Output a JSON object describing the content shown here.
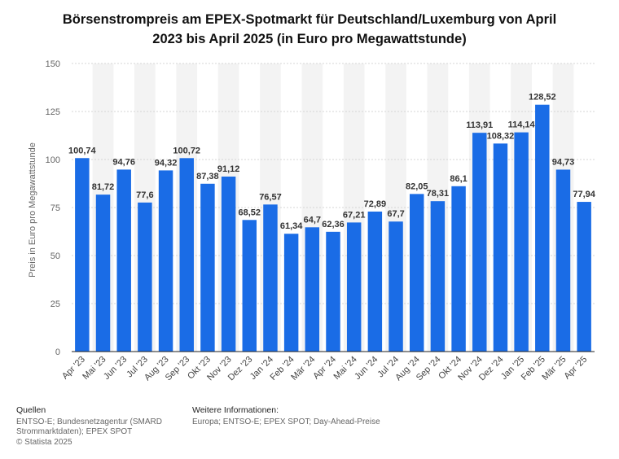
{
  "title": {
    "line1": "Börsenstrompreis am EPEX-Spotmarkt für Deutschland/Luxemburg von April",
    "line2": "2023 bis April 2025 (in Euro pro Megawattstunde)"
  },
  "footer": {
    "sources_heading": "Quellen",
    "sources_line1": "ENTSO-E; Bundesnetzagentur (SMARD",
    "sources_line2": "Strommarktdaten); EPEX SPOT",
    "copyright": "© Statista 2025",
    "info_heading": "Weitere Informationen:",
    "info_text": "Europa; ENTSO-E; EPEX SPOT; Day-Ahead-Preise"
  },
  "colors": {
    "bar": "#1a6ce6",
    "band": "#f3f3f3",
    "grid": "#d6d6d6",
    "axis": "#222222",
    "value_label": "#333333"
  },
  "chart_data": {
    "type": "bar",
    "title": "Börsenstrompreis am EPEX-Spotmarkt für Deutschland/Luxemburg von April 2023 bis April 2025 (in Euro pro Megawattstunde)",
    "xlabel": "",
    "ylabel": "Preis in Euro pro Megawattstunde",
    "ylim": [
      0,
      150
    ],
    "yticks": [
      0,
      25,
      50,
      75,
      100,
      125,
      150
    ],
    "grid": true,
    "legend": "none",
    "categories": [
      "Apr '23",
      "Mai '23",
      "Jun '23",
      "Jul '23",
      "Aug '23",
      "Sep '23",
      "Okt '23",
      "Nov '23",
      "Dez '23",
      "Jan '24",
      "Feb '24",
      "Mär '24",
      "Apr '24",
      "Mai '24",
      "Jun '24",
      "Jul '24",
      "Aug '24",
      "Sep '24",
      "Okt '24",
      "Nov '24",
      "Dez '24",
      "Jan '25",
      "Feb '25",
      "Mär '25",
      "Apr '25"
    ],
    "values": [
      100.74,
      81.72,
      94.76,
      77.6,
      94.32,
      100.72,
      87.38,
      91.12,
      68.52,
      76.57,
      61.34,
      64.7,
      62.36,
      67.21,
      72.89,
      67.7,
      82.05,
      78.31,
      86.1,
      113.91,
      108.32,
      114.14,
      128.52,
      94.73,
      77.94
    ],
    "value_labels": [
      "100,74",
      "81,72",
      "94,76",
      "77,6",
      "94,32",
      "100,72",
      "87,38",
      "91,12",
      "68,52",
      "76,57",
      "61,34",
      "64,7",
      "62,36",
      "67,21",
      "72,89",
      "67,7",
      "82,05",
      "78,31",
      "86,1",
      "113,91",
      "108,32",
      "114,14",
      "128,52",
      "94,73",
      "77,94"
    ]
  }
}
